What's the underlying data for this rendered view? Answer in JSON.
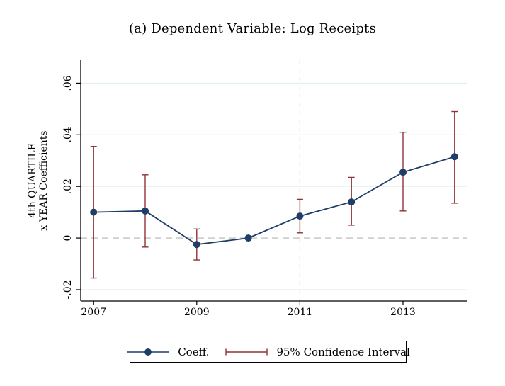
{
  "chart_data": {
    "type": "line",
    "title": "(a) Dependent Variable: Log Receipts",
    "ylabel_lines": [
      "4th QUARTILE",
      "x YEAR Coefficients"
    ],
    "x": [
      2007,
      2008,
      2009,
      2010,
      2011,
      2012,
      2013,
      2014
    ],
    "series": [
      {
        "name": "Coeff.",
        "values": [
          0.01,
          0.0105,
          -0.0025,
          0.0,
          0.0085,
          0.014,
          0.0255,
          0.0315
        ]
      }
    ],
    "ci_low": [
      -0.0155,
      -0.0035,
      -0.0085,
      null,
      0.002,
      0.005,
      0.0105,
      0.0135
    ],
    "ci_high": [
      0.0355,
      0.0245,
      0.0035,
      null,
      0.015,
      0.0235,
      0.041,
      0.049
    ],
    "xlim": [
      2006.75,
      2014.25
    ],
    "ylim": [
      -0.0244,
      0.0689
    ],
    "yticks": [
      -0.02,
      0,
      0.02,
      0.04,
      0.06
    ],
    "ytick_labels": [
      "-.02",
      "0",
      ".02",
      ".04",
      ".06"
    ],
    "grid_yticks": [
      -0.02,
      0.02,
      0.04,
      0.06
    ],
    "xticks": [
      2007,
      2009,
      2011,
      2013
    ],
    "xtick_labels": [
      "2007",
      "2009",
      "2011",
      "2013"
    ],
    "ref_hline": 0,
    "ref_vline": 2011,
    "grid": true,
    "legend_position": "bottom",
    "colors": {
      "coef": "#1f3d66",
      "ci": "#8e3338",
      "grid": "#e3eef2",
      "refline": "#b5b5b5",
      "axis": "#000000"
    }
  },
  "legend": {
    "coef_label": "Coeff.",
    "ci_label": "95% Confidence Interval"
  }
}
